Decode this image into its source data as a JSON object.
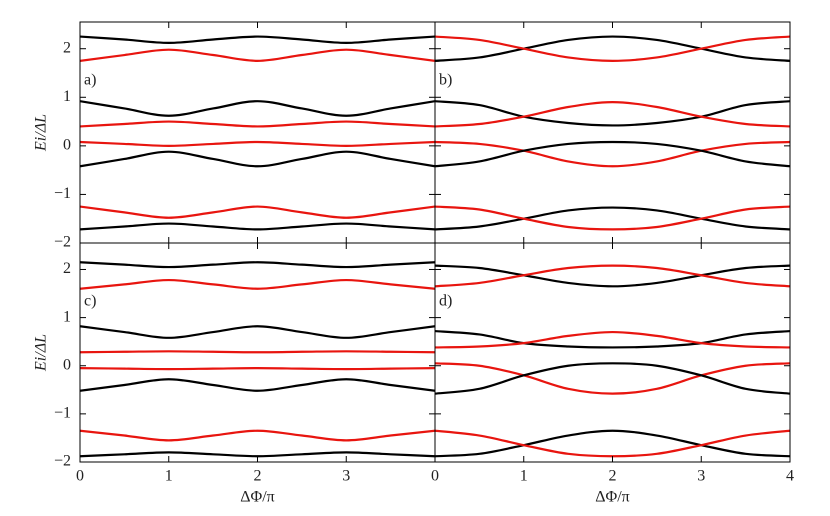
{
  "chart_data": [
    {
      "type": "line",
      "label": "a)",
      "ylabel": "Ei/ΔL",
      "x": [
        0,
        0.5,
        1,
        1.5,
        2,
        2.5,
        3,
        3.5,
        4
      ],
      "xlim": [
        0,
        4
      ],
      "xticks": [
        0,
        1,
        2,
        3,
        4
      ],
      "xticklabels": false,
      "ylim": [
        -2,
        2.55
      ],
      "yticks": [
        {
          "value": -2,
          "label": "−2"
        },
        {
          "value": -1,
          "label": "−1"
        },
        0,
        1,
        2
      ],
      "yticklabels": true,
      "series": [
        {
          "color": "#000000",
          "values": [
            2.25,
            2.19,
            2.12,
            2.19,
            2.25,
            2.19,
            2.12,
            2.19,
            2.25
          ]
        },
        {
          "color": "#e8150f",
          "values": [
            1.75,
            1.87,
            1.98,
            1.87,
            1.75,
            1.87,
            1.98,
            1.87,
            1.75
          ]
        },
        {
          "color": "#000000",
          "values": [
            0.92,
            0.77,
            0.62,
            0.77,
            0.92,
            0.77,
            0.62,
            0.77,
            0.92
          ]
        },
        {
          "color": "#e8150f",
          "values": [
            0.4,
            0.45,
            0.5,
            0.45,
            0.4,
            0.45,
            0.5,
            0.45,
            0.4
          ]
        },
        {
          "color": "#e8150f",
          "values": [
            0.08,
            0.04,
            0.0,
            0.04,
            0.08,
            0.04,
            0.0,
            0.04,
            0.08
          ]
        },
        {
          "color": "#000000",
          "values": [
            -0.42,
            -0.27,
            -0.12,
            -0.27,
            -0.42,
            -0.27,
            -0.12,
            -0.27,
            -0.42
          ]
        },
        {
          "color": "#e8150f",
          "values": [
            -1.25,
            -1.37,
            -1.48,
            -1.37,
            -1.25,
            -1.37,
            -1.48,
            -1.37,
            -1.25
          ]
        },
        {
          "color": "#000000",
          "values": [
            -1.72,
            -1.66,
            -1.6,
            -1.66,
            -1.72,
            -1.66,
            -1.6,
            -1.66,
            -1.72
          ]
        }
      ]
    },
    {
      "type": "line",
      "label": "b)",
      "x": [
        0,
        0.5,
        1,
        1.5,
        2,
        2.5,
        3,
        3.5,
        4
      ],
      "xlim": [
        0,
        4
      ],
      "xticks": [
        0,
        1,
        2,
        3,
        4
      ],
      "xticklabels": false,
      "ylim": [
        -2,
        2.55
      ],
      "yticks": [
        -2,
        -1,
        0,
        1,
        2
      ],
      "yticklabels": false,
      "series": [
        {
          "color": "#000000",
          "values": [
            1.75,
            1.82,
            2.0,
            2.18,
            2.25,
            2.18,
            2.0,
            1.82,
            1.75
          ]
        },
        {
          "color": "#e8150f",
          "values": [
            2.25,
            2.18,
            2.0,
            1.82,
            1.75,
            1.82,
            2.0,
            2.18,
            2.25
          ]
        },
        {
          "color": "#000000",
          "values": [
            0.92,
            0.84,
            0.6,
            0.47,
            0.42,
            0.47,
            0.6,
            0.84,
            0.92
          ]
        },
        {
          "color": "#e8150f",
          "values": [
            0.4,
            0.45,
            0.6,
            0.8,
            0.9,
            0.8,
            0.6,
            0.45,
            0.4
          ]
        },
        {
          "color": "#e8150f",
          "values": [
            0.08,
            0.04,
            -0.1,
            -0.32,
            -0.42,
            -0.32,
            -0.1,
            0.04,
            0.08
          ]
        },
        {
          "color": "#000000",
          "values": [
            -0.42,
            -0.32,
            -0.1,
            0.04,
            0.08,
            0.04,
            -0.1,
            -0.32,
            -0.42
          ]
        },
        {
          "color": "#000000",
          "values": [
            -1.72,
            -1.66,
            -1.5,
            -1.33,
            -1.27,
            -1.33,
            -1.5,
            -1.66,
            -1.72
          ]
        },
        {
          "color": "#e8150f",
          "values": [
            -1.25,
            -1.31,
            -1.5,
            -1.67,
            -1.72,
            -1.67,
            -1.5,
            -1.31,
            -1.25
          ]
        }
      ]
    },
    {
      "type": "line",
      "label": "c)",
      "ylabel": "Ei/ΔL",
      "xlabel": "ΔΦ/π",
      "x": [
        0,
        0.5,
        1,
        1.5,
        2,
        2.5,
        3,
        3.5,
        4
      ],
      "xlim": [
        0,
        4
      ],
      "xticks": [
        0,
        1,
        2,
        3
      ],
      "xticklabels": true,
      "ylim": [
        -2,
        2.55
      ],
      "yticks": [
        {
          "value": -2,
          "label": "−2"
        },
        {
          "value": -1,
          "label": "−1"
        },
        0,
        1,
        2
      ],
      "yticklabels": true,
      "series": [
        {
          "color": "#000000",
          "values": [
            2.15,
            2.1,
            2.05,
            2.1,
            2.15,
            2.1,
            2.05,
            2.1,
            2.15
          ]
        },
        {
          "color": "#e8150f",
          "values": [
            1.6,
            1.69,
            1.78,
            1.69,
            1.6,
            1.69,
            1.78,
            1.69,
            1.6
          ]
        },
        {
          "color": "#000000",
          "values": [
            0.82,
            0.7,
            0.58,
            0.7,
            0.82,
            0.7,
            0.58,
            0.7,
            0.82
          ]
        },
        {
          "color": "#e8150f",
          "values": [
            0.28,
            0.29,
            0.3,
            0.29,
            0.28,
            0.29,
            0.3,
            0.29,
            0.28
          ]
        },
        {
          "color": "#e8150f",
          "values": [
            -0.05,
            -0.06,
            -0.07,
            -0.06,
            -0.05,
            -0.06,
            -0.07,
            -0.06,
            -0.05
          ]
        },
        {
          "color": "#000000",
          "values": [
            -0.52,
            -0.4,
            -0.28,
            -0.4,
            -0.52,
            -0.4,
            -0.28,
            -0.4,
            -0.52
          ]
        },
        {
          "color": "#e8150f",
          "values": [
            -1.35,
            -1.45,
            -1.55,
            -1.45,
            -1.35,
            -1.45,
            -1.55,
            -1.45,
            -1.35
          ]
        },
        {
          "color": "#000000",
          "values": [
            -1.88,
            -1.84,
            -1.8,
            -1.84,
            -1.88,
            -1.84,
            -1.8,
            -1.84,
            -1.88
          ]
        }
      ]
    },
    {
      "type": "line",
      "label": "d)",
      "xlabel": "ΔΦ/π",
      "x": [
        0,
        0.5,
        1,
        1.5,
        2,
        2.5,
        3,
        3.5,
        4
      ],
      "xlim": [
        0,
        4
      ],
      "xticks": [
        0,
        1,
        2,
        3,
        4
      ],
      "xticklabels": true,
      "ylim": [
        -2,
        2.55
      ],
      "yticks": [
        -2,
        -1,
        0,
        1,
        2
      ],
      "yticklabels": false,
      "series": [
        {
          "color": "#000000",
          "values": [
            2.08,
            2.03,
            1.88,
            1.72,
            1.65,
            1.72,
            1.88,
            2.03,
            2.08
          ]
        },
        {
          "color": "#e8150f",
          "values": [
            1.65,
            1.72,
            1.88,
            2.03,
            2.08,
            2.03,
            1.88,
            1.72,
            1.65
          ]
        },
        {
          "color": "#000000",
          "values": [
            0.72,
            0.65,
            0.47,
            0.4,
            0.38,
            0.4,
            0.47,
            0.65,
            0.72
          ]
        },
        {
          "color": "#e8150f",
          "values": [
            0.38,
            0.4,
            0.47,
            0.62,
            0.7,
            0.62,
            0.47,
            0.4,
            0.38
          ]
        },
        {
          "color": "#e8150f",
          "values": [
            0.05,
            0.0,
            -0.2,
            -0.48,
            -0.58,
            -0.48,
            -0.2,
            0.0,
            0.05
          ]
        },
        {
          "color": "#000000",
          "values": [
            -0.58,
            -0.48,
            -0.2,
            0.0,
            0.05,
            0.0,
            -0.2,
            -0.48,
            -0.58
          ]
        },
        {
          "color": "#000000",
          "values": [
            -1.88,
            -1.83,
            -1.65,
            -1.45,
            -1.35,
            -1.45,
            -1.65,
            -1.83,
            -1.88
          ]
        },
        {
          "color": "#e8150f",
          "values": [
            -1.35,
            -1.45,
            -1.65,
            -1.83,
            -1.88,
            -1.83,
            -1.65,
            -1.45,
            -1.35
          ]
        }
      ]
    }
  ]
}
